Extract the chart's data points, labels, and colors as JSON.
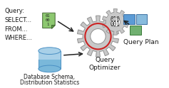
{
  "background_color": "#ffffff",
  "query_text": [
    "Query:",
    "SELECT...",
    "FROM...",
    "WHERE..."
  ],
  "db_text": [
    "Database Schema,",
    "Distribution Statistics"
  ],
  "gear_label": [
    "Query",
    "Optimizer"
  ],
  "qplan_text": "Query Plan",
  "gear_color": "#c8c8c8",
  "gear_edge_color": "#909090",
  "gear_red_color": "#cc2222",
  "text_color": "#1a1a1a",
  "font_size": 6.5,
  "doc_green": "#8dc870",
  "doc_dark_green": "#5a9a40",
  "doc_text_color": "#444444",
  "db_blue_dark": "#4a90c4",
  "db_blue_light": "#a8d0e8",
  "db_blue_mid": "#7ab8da",
  "box_blue1": "#5b9bd5",
  "box_blue2": "#88bbdd",
  "box_blue_edge": "#3a6ea0",
  "box_green": "#70b070",
  "box_green_edge": "#3a7a3a",
  "arrow_color": "#222222"
}
